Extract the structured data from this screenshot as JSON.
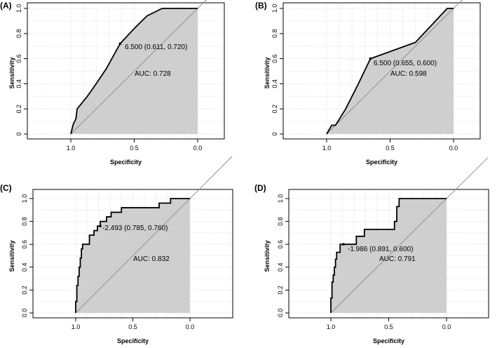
{
  "chart_data": [
    {
      "type": "line",
      "panel_label": "(A)",
      "xlabel": "Specificity",
      "ylabel": "Sensitivity",
      "xlim": [
        1.0,
        0.0
      ],
      "ylim": [
        0.0,
        1.0
      ],
      "x_ticks": [
        "1.0",
        "0.5",
        "0.0"
      ],
      "y_ticks": [
        "0",
        "0.2",
        "0.4",
        "0.6",
        "0.8",
        "1.0"
      ],
      "grid": true,
      "auc_label": "AUC: 0.728",
      "threshold_label": "6.500 (0.611, 0.720)",
      "threshold_point": {
        "specificity": 0.611,
        "sensitivity": 0.72
      },
      "curve": [
        {
          "specificity": 1.0,
          "sensitivity": 0.0
        },
        {
          "specificity": 0.99,
          "sensitivity": 0.04
        },
        {
          "specificity": 0.98,
          "sensitivity": 0.08
        },
        {
          "specificity": 0.96,
          "sensitivity": 0.12
        },
        {
          "specificity": 0.95,
          "sensitivity": 0.2
        },
        {
          "specificity": 0.87,
          "sensitivity": 0.3
        },
        {
          "specificity": 0.8,
          "sensitivity": 0.4
        },
        {
          "specificity": 0.72,
          "sensitivity": 0.52
        },
        {
          "specificity": 0.611,
          "sensitivity": 0.72
        },
        {
          "specificity": 0.5,
          "sensitivity": 0.84
        },
        {
          "specificity": 0.4,
          "sensitivity": 0.94
        },
        {
          "specificity": 0.28,
          "sensitivity": 1.0
        },
        {
          "specificity": 0.0,
          "sensitivity": 1.0
        }
      ]
    },
    {
      "type": "line",
      "panel_label": "(B)",
      "xlabel": "Specificity",
      "ylabel": "Sensitivity",
      "xlim": [
        1.0,
        0.0
      ],
      "ylim": [
        0.0,
        1.0
      ],
      "x_ticks": [
        "1.0",
        "0.5",
        "0.0"
      ],
      "y_ticks": [
        "0",
        "0.2",
        "0.4",
        "0.6",
        "0.8",
        "1.0"
      ],
      "grid": true,
      "auc_label": "AUC: 0.598",
      "threshold_label": "6.500 (0.655, 0.600)",
      "threshold_point": {
        "specificity": 0.655,
        "sensitivity": 0.6
      },
      "curve": [
        {
          "specificity": 1.0,
          "sensitivity": 0.0
        },
        {
          "specificity": 0.96,
          "sensitivity": 0.07
        },
        {
          "specificity": 0.93,
          "sensitivity": 0.07
        },
        {
          "specificity": 0.85,
          "sensitivity": 0.2
        },
        {
          "specificity": 0.75,
          "sensitivity": 0.4
        },
        {
          "specificity": 0.655,
          "sensitivity": 0.6
        },
        {
          "specificity": 0.3,
          "sensitivity": 0.73
        },
        {
          "specificity": 0.05,
          "sensitivity": 1.0
        },
        {
          "specificity": 0.0,
          "sensitivity": 1.0
        }
      ]
    },
    {
      "type": "line",
      "panel_label": "(C)",
      "xlabel": "Specificity",
      "ylabel": "Sensitivity",
      "xlim": [
        1.0,
        0.0
      ],
      "ylim": [
        0.0,
        1.0
      ],
      "x_ticks": [
        "1.0",
        "0.5",
        "0.0"
      ],
      "y_ticks": [
        "0.0",
        "0.2",
        "0.4",
        "0.6",
        "0.8",
        "1.0"
      ],
      "grid": true,
      "auc_label": "AUC: 0.832",
      "threshold_label": "-2.493 (0.785, 0.760)",
      "threshold_point": {
        "specificity": 0.785,
        "sensitivity": 0.76
      },
      "curve": [
        {
          "specificity": 1.0,
          "sensitivity": 0.0
        },
        {
          "specificity": 1.0,
          "sensitivity": 0.1
        },
        {
          "specificity": 0.99,
          "sensitivity": 0.1
        },
        {
          "specificity": 0.99,
          "sensitivity": 0.24
        },
        {
          "specificity": 0.98,
          "sensitivity": 0.24
        },
        {
          "specificity": 0.98,
          "sensitivity": 0.32
        },
        {
          "specificity": 0.97,
          "sensitivity": 0.32
        },
        {
          "specificity": 0.97,
          "sensitivity": 0.4
        },
        {
          "specificity": 0.96,
          "sensitivity": 0.4
        },
        {
          "specificity": 0.96,
          "sensitivity": 0.48
        },
        {
          "specificity": 0.95,
          "sensitivity": 0.48
        },
        {
          "specificity": 0.95,
          "sensitivity": 0.56
        },
        {
          "specificity": 0.94,
          "sensitivity": 0.56
        },
        {
          "specificity": 0.94,
          "sensitivity": 0.6
        },
        {
          "specificity": 0.88,
          "sensitivity": 0.6
        },
        {
          "specificity": 0.88,
          "sensitivity": 0.68
        },
        {
          "specificity": 0.84,
          "sensitivity": 0.68
        },
        {
          "specificity": 0.84,
          "sensitivity": 0.72
        },
        {
          "specificity": 0.81,
          "sensitivity": 0.72
        },
        {
          "specificity": 0.81,
          "sensitivity": 0.76
        },
        {
          "specificity": 0.785,
          "sensitivity": 0.76
        },
        {
          "specificity": 0.785,
          "sensitivity": 0.8
        },
        {
          "specificity": 0.73,
          "sensitivity": 0.8
        },
        {
          "specificity": 0.73,
          "sensitivity": 0.84
        },
        {
          "specificity": 0.69,
          "sensitivity": 0.84
        },
        {
          "specificity": 0.69,
          "sensitivity": 0.88
        },
        {
          "specificity": 0.6,
          "sensitivity": 0.88
        },
        {
          "specificity": 0.6,
          "sensitivity": 0.92
        },
        {
          "specificity": 0.27,
          "sensitivity": 0.92
        },
        {
          "specificity": 0.27,
          "sensitivity": 0.96
        },
        {
          "specificity": 0.17,
          "sensitivity": 0.96
        },
        {
          "specificity": 0.17,
          "sensitivity": 1.0
        },
        {
          "specificity": 0.0,
          "sensitivity": 1.0
        }
      ]
    },
    {
      "type": "line",
      "panel_label": "(D)",
      "xlabel": "Specificity",
      "ylabel": "Sensitivity",
      "xlim": [
        1.0,
        0.0
      ],
      "ylim": [
        0.0,
        1.0
      ],
      "x_ticks": [
        "1.0",
        "0.5",
        "0.0"
      ],
      "y_ticks": [
        "0.0",
        "0.2",
        "0.4",
        "0.6",
        "0.8",
        "1.0"
      ],
      "grid": true,
      "auc_label": "AUC: 0.791",
      "threshold_label": "-1.986 (0.891, 0.600)",
      "threshold_point": {
        "specificity": 0.891,
        "sensitivity": 0.6
      },
      "curve": [
        {
          "specificity": 1.0,
          "sensitivity": 0.0
        },
        {
          "specificity": 1.0,
          "sensitivity": 0.13
        },
        {
          "specificity": 0.99,
          "sensitivity": 0.13
        },
        {
          "specificity": 0.99,
          "sensitivity": 0.27
        },
        {
          "specificity": 0.98,
          "sensitivity": 0.27
        },
        {
          "specificity": 0.98,
          "sensitivity": 0.33
        },
        {
          "specificity": 0.97,
          "sensitivity": 0.33
        },
        {
          "specificity": 0.97,
          "sensitivity": 0.4
        },
        {
          "specificity": 0.96,
          "sensitivity": 0.4
        },
        {
          "specificity": 0.96,
          "sensitivity": 0.47
        },
        {
          "specificity": 0.95,
          "sensitivity": 0.47
        },
        {
          "specificity": 0.95,
          "sensitivity": 0.53
        },
        {
          "specificity": 0.92,
          "sensitivity": 0.53
        },
        {
          "specificity": 0.92,
          "sensitivity": 0.6
        },
        {
          "specificity": 0.87,
          "sensitivity": 0.6
        },
        {
          "specificity": 0.78,
          "sensitivity": 0.6
        },
        {
          "specificity": 0.78,
          "sensitivity": 0.67
        },
        {
          "specificity": 0.71,
          "sensitivity": 0.67
        },
        {
          "specificity": 0.71,
          "sensitivity": 0.73
        },
        {
          "specificity": 0.45,
          "sensitivity": 0.73
        },
        {
          "specificity": 0.45,
          "sensitivity": 0.8
        },
        {
          "specificity": 0.43,
          "sensitivity": 0.8
        },
        {
          "specificity": 0.43,
          "sensitivity": 0.93
        },
        {
          "specificity": 0.41,
          "sensitivity": 0.93
        },
        {
          "specificity": 0.41,
          "sensitivity": 1.0
        },
        {
          "specificity": 0.0,
          "sensitivity": 1.0
        }
      ]
    }
  ]
}
